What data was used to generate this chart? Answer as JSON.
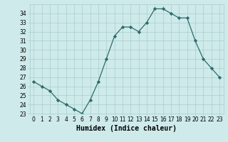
{
  "x": [
    0,
    1,
    2,
    3,
    4,
    5,
    6,
    7,
    8,
    9,
    10,
    11,
    12,
    13,
    14,
    15,
    16,
    17,
    18,
    19,
    20,
    21,
    22,
    23
  ],
  "y": [
    26.5,
    26.0,
    25.5,
    24.5,
    24.0,
    23.5,
    23.0,
    24.5,
    26.5,
    29.0,
    31.5,
    32.5,
    32.5,
    32.0,
    33.0,
    34.5,
    34.5,
    34.0,
    33.5,
    33.5,
    31.0,
    29.0,
    28.0,
    27.0
  ],
  "line_color": "#2e6b6b",
  "marker": "D",
  "marker_size": 2.2,
  "bg_color": "#ceeaea",
  "grid_color": "#aacece",
  "xlabel": "Humidex (Indice chaleur)",
  "xlim": [
    -0.5,
    23.5
  ],
  "ylim": [
    23,
    35
  ],
  "yticks": [
    23,
    24,
    25,
    26,
    27,
    28,
    29,
    30,
    31,
    32,
    33,
    34
  ],
  "xticks": [
    0,
    1,
    2,
    3,
    4,
    5,
    6,
    7,
    8,
    9,
    10,
    11,
    12,
    13,
    14,
    15,
    16,
    17,
    18,
    19,
    20,
    21,
    22,
    23
  ],
  "tick_fontsize": 5.5,
  "xlabel_fontsize": 7.0,
  "linewidth": 0.9
}
